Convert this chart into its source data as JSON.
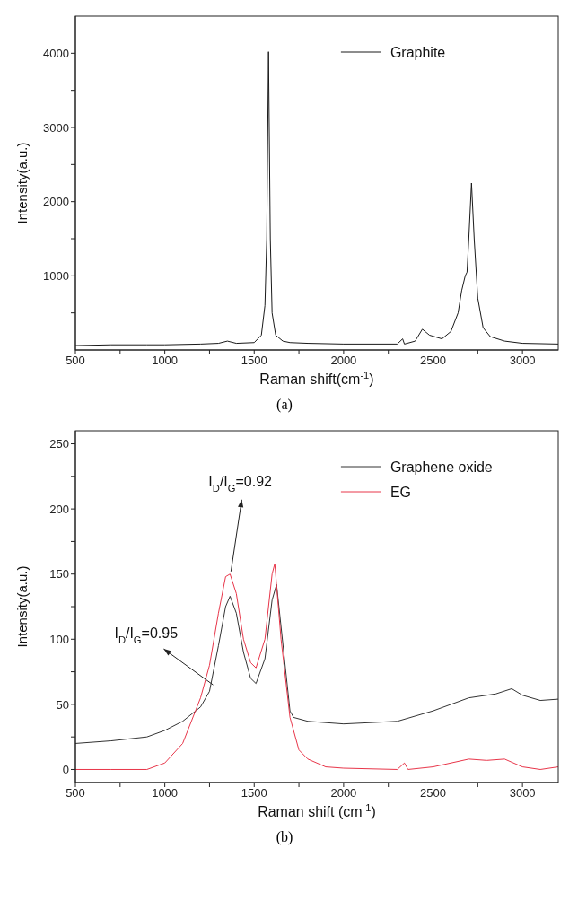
{
  "chart_data": [
    {
      "type": "line",
      "title": "(a)",
      "xlabel": "Raman shift(cm$^{-1}$)",
      "ylabel": "Intensity(a.u.)",
      "xlim": [
        500,
        3200
      ],
      "ylim": [
        0,
        4500
      ],
      "xticks": [
        500,
        {
          "value": 750,
          "label": null
        },
        1000,
        {
          "value": 1250,
          "label": null
        },
        1500,
        {
          "value": 1750,
          "label": null
        },
        2000,
        {
          "value": 2250,
          "label": null
        },
        2500,
        {
          "value": 2750,
          "label": null
        },
        3000
      ],
      "yticks": [
        {
          "value": 500,
          "label": null
        },
        1000,
        {
          "value": 1500,
          "label": null
        },
        2000,
        {
          "value": 2500,
          "label": null
        },
        3000,
        {
          "value": 3500,
          "label": null
        },
        4000
      ],
      "legend": "top right",
      "grid": false,
      "marker": "none",
      "line_style": "solid",
      "series": [
        {
          "name": "Graphite",
          "color": "#1a1a1a",
          "x": [
            500,
            700,
            900,
            1000,
            1200,
            1300,
            1350,
            1400,
            1500,
            1540,
            1560,
            1570,
            1580,
            1590,
            1600,
            1620,
            1660,
            1700,
            1800,
            2000,
            2300,
            2330,
            2340,
            2400,
            2440,
            2480,
            2550,
            2600,
            2640,
            2660,
            2680,
            2690,
            2700,
            2715,
            2730,
            2750,
            2780,
            2820,
            2900,
            3000,
            3200
          ],
          "values": [
            60,
            70,
            70,
            70,
            80,
            90,
            120,
            90,
            100,
            200,
            600,
            1500,
            4020,
            1500,
            500,
            200,
            120,
            100,
            90,
            80,
            80,
            150,
            80,
            120,
            280,
            200,
            150,
            250,
            500,
            800,
            1000,
            1050,
            1500,
            2250,
            1500,
            700,
            300,
            180,
            120,
            90,
            80
          ]
        }
      ]
    },
    {
      "type": "line",
      "title": "(b)",
      "xlabel": "Raman shift (cm$^{-1}$)",
      "ylabel": "Intensity(a.u.)",
      "xlim": [
        500,
        3200
      ],
      "ylim": [
        -10,
        260
      ],
      "xticks": [
        500,
        {
          "value": 750,
          "label": null
        },
        1000,
        {
          "value": 1250,
          "label": null
        },
        1500,
        {
          "value": 1750,
          "label": null
        },
        2000,
        {
          "value": 2250,
          "label": null
        },
        2500,
        {
          "value": 2750,
          "label": null
        },
        3000
      ],
      "yticks": [
        0,
        {
          "value": 25,
          "label": null
        },
        50,
        {
          "value": 75,
          "label": null
        },
        100,
        {
          "value": 125,
          "label": null
        },
        150,
        {
          "value": 175,
          "label": null
        },
        200,
        {
          "value": 225,
          "label": null
        },
        250
      ],
      "legend": "top right",
      "grid": false,
      "marker": "none",
      "line_style": "solid",
      "annotations": [
        {
          "text": "I$_{D}$/I$_{G}$=0.95",
          "x": 1270,
          "y": 65
        },
        {
          "text": "I$_{D}$/I$_{G}$=0.92",
          "x": 1370,
          "y": 152
        }
      ],
      "series": [
        {
          "name": "Graphene oxide",
          "color": "#333333",
          "x": [
            500,
            700,
            900,
            1000,
            1100,
            1200,
            1250,
            1300,
            1340,
            1365,
            1400,
            1440,
            1480,
            1510,
            1560,
            1600,
            1625,
            1700,
            1720,
            1800,
            2000,
            2300,
            2500,
            2700,
            2850,
            2940,
            3000,
            3100,
            3200
          ],
          "values": [
            20,
            22,
            25,
            30,
            37,
            48,
            60,
            95,
            125,
            133,
            120,
            90,
            70,
            66,
            85,
            130,
            142,
            45,
            40,
            37,
            35,
            37,
            45,
            55,
            58,
            62,
            57,
            53,
            54
          ]
        },
        {
          "name": "EG",
          "color": "#e8364a",
          "x": [
            500,
            700,
            900,
            1000,
            1100,
            1200,
            1250,
            1300,
            1340,
            1365,
            1400,
            1440,
            1480,
            1510,
            1560,
            1600,
            1615,
            1650,
            1700,
            1750,
            1800,
            1900,
            2000,
            2300,
            2340,
            2360,
            2500,
            2700,
            2800,
            2900,
            3000,
            3100,
            3200
          ],
          "values": [
            0,
            0,
            0,
            5,
            20,
            55,
            80,
            120,
            148,
            150,
            135,
            100,
            82,
            78,
            100,
            150,
            158,
            100,
            40,
            15,
            8,
            2,
            1,
            0,
            5,
            0,
            2,
            8,
            7,
            8,
            2,
            0,
            2
          ]
        }
      ]
    }
  ]
}
